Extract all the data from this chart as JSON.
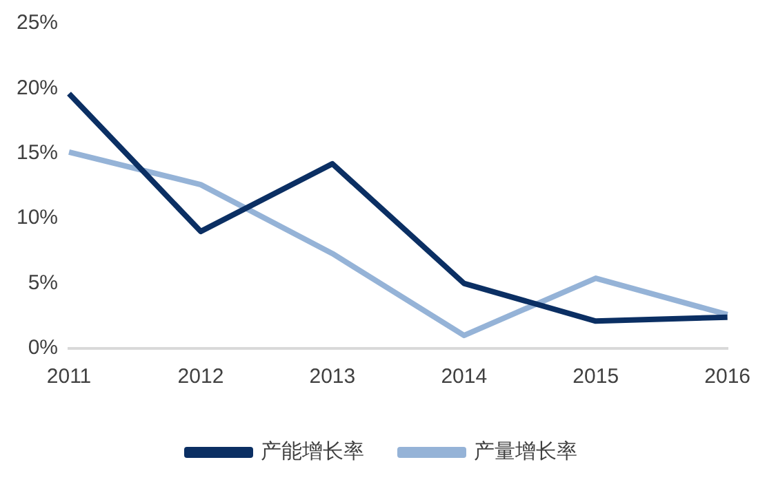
{
  "chart_data": {
    "type": "line",
    "categories": [
      "2011",
      "2012",
      "2013",
      "2014",
      "2015",
      "2016"
    ],
    "series": [
      {
        "name": "产能增长率",
        "color": "#0b2f63",
        "values": [
          19.6,
          9.0,
          14.2,
          5.0,
          2.1,
          2.4
        ]
      },
      {
        "name": "产量增长率",
        "color": "#95b3d7",
        "values": [
          15.1,
          12.6,
          7.3,
          1.0,
          5.4,
          2.6
        ]
      }
    ],
    "ylim": [
      0,
      25
    ],
    "yticks": [
      {
        "value": 0,
        "label": "0%"
      },
      {
        "value": 5,
        "label": "5%"
      },
      {
        "value": 10,
        "label": "10%"
      },
      {
        "value": 15,
        "label": "15%"
      },
      {
        "value": 20,
        "label": "20%"
      },
      {
        "value": 25,
        "label": "25%"
      }
    ],
    "grid": false,
    "legend": "bottom",
    "marker": "none",
    "line_style": "solid"
  }
}
